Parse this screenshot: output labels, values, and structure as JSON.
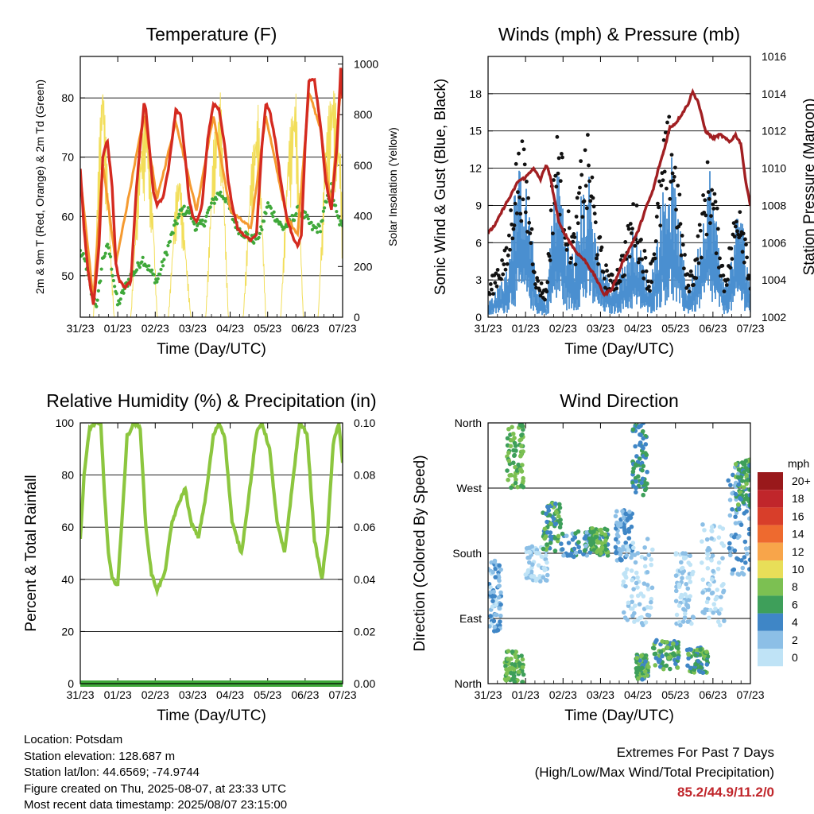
{
  "chart_data": [
    {
      "id": "temperature",
      "type": "line",
      "title": "Temperature (F)",
      "xlabel": "Time (Day/UTC)",
      "ylabel": "2m & 9m T (Red, Orange) & 2m Td (Green)",
      "ylabel_right": "Solar Insolation (Yellow)",
      "x_ticks": [
        "31/23",
        "01/23",
        "02/23",
        "03/23",
        "04/23",
        "05/23",
        "06/23",
        "07/23"
      ],
      "y_ticks": [
        50,
        60,
        70,
        80
      ],
      "ylim": [
        43,
        87
      ],
      "y_right_ticks": [
        0,
        200,
        400,
        600,
        800,
        1000
      ],
      "ylim_right": [
        0,
        1030
      ],
      "x_range_days": [
        0,
        7.0
      ],
      "colors": {
        "t2m": "#d42a20",
        "t9m": "#f59a30",
        "td": "#3fa83a",
        "solar": "#f2de5a"
      },
      "series": [
        {
          "name": "2m T",
          "x": [
            0,
            0.1,
            0.2,
            0.35,
            0.5,
            0.6,
            0.72,
            0.85,
            0.95,
            1.05,
            1.2,
            1.35,
            1.5,
            1.7,
            1.75,
            1.85,
            1.95,
            2.0,
            2.05,
            2.2,
            2.35,
            2.55,
            2.68,
            2.8,
            2.9,
            3.0,
            3.1,
            3.25,
            3.4,
            3.55,
            3.7,
            3.85,
            3.95,
            4.05,
            4.2,
            4.35,
            4.55,
            4.7,
            4.85,
            4.95,
            5.05,
            5.2,
            5.35,
            5.5,
            5.7,
            5.8,
            5.9,
            6.0,
            6.1,
            6.25,
            6.4,
            6.55,
            6.7,
            6.85,
            6.95,
            7.0
          ],
          "values": [
            68,
            58,
            51,
            45,
            55,
            70,
            73,
            65,
            52,
            49,
            48,
            49,
            65,
            79,
            78,
            71,
            64,
            63,
            62,
            63,
            68,
            78,
            77,
            70,
            63,
            60,
            59,
            62,
            73,
            79,
            78,
            72,
            66,
            62,
            58,
            57,
            56,
            57,
            72,
            79,
            78,
            73,
            66,
            60,
            56,
            55,
            57,
            72,
            83,
            83,
            76,
            66,
            61,
            72,
            85,
            80
          ]
        },
        {
          "name": "9m T",
          "x": [
            0,
            0.35,
            0.6,
            0.95,
            1.7,
            2.05,
            2.55,
            3.1,
            3.55,
            4.0,
            4.55,
            4.95,
            5.5,
            5.8,
            6.1,
            6.4,
            6.7,
            6.95,
            7.0
          ],
          "values": [
            67,
            46,
            69,
            52,
            77,
            63,
            76,
            61,
            77,
            61,
            58,
            77,
            60,
            57,
            81,
            75,
            62,
            82,
            82
          ]
        },
        {
          "name": "2m Td",
          "x": [
            0,
            0.15,
            0.3,
            0.45,
            0.6,
            0.75,
            0.9,
            1.0,
            1.2,
            1.35,
            1.5,
            1.65,
            1.85,
            2.05,
            2.2,
            2.35,
            2.5,
            2.7,
            2.9,
            3.1,
            3.3,
            3.5,
            3.7,
            3.9,
            4.05,
            4.2,
            4.4,
            4.6,
            4.8,
            5.0,
            5.2,
            5.4,
            5.6,
            5.8,
            6.0,
            6.2,
            6.4,
            6.55,
            6.7,
            6.85,
            7.0
          ],
          "values": [
            54,
            52,
            47,
            45,
            53,
            55,
            49,
            45,
            48,
            50,
            51,
            53,
            51,
            49,
            52,
            55,
            58,
            61,
            61,
            58,
            59,
            62,
            64,
            63,
            60,
            58,
            57,
            56,
            57,
            62,
            60,
            58,
            59,
            61,
            60,
            58,
            58,
            62,
            65,
            60,
            58
          ]
        },
        {
          "name": "Solar",
          "x": [
            0,
            0.35,
            0.5,
            0.6,
            0.75,
            0.9,
            1.35,
            1.55,
            1.75,
            1.95,
            2.05,
            2.35,
            2.55,
            2.65,
            2.8,
            2.95,
            3.35,
            3.55,
            3.75,
            3.95,
            4.35,
            4.55,
            4.75,
            4.95,
            5.35,
            5.55,
            5.75,
            5.95,
            6.35,
            6.55,
            6.75,
            6.95,
            7.0
          ],
          "values": [
            0,
            0,
            700,
            1000,
            500,
            0,
            0,
            600,
            850,
            400,
            0,
            0,
            500,
            600,
            300,
            0,
            0,
            700,
            900,
            0,
            0,
            600,
            850,
            0,
            0,
            700,
            920,
            0,
            0,
            750,
            950,
            650,
            300
          ]
        }
      ]
    },
    {
      "id": "winds",
      "type": "line",
      "title": "Winds (mph) & Pressure (mb)",
      "xlabel": "Time (Day/UTC)",
      "ylabel": "Sonic Wind & Gust (Blue, Black)",
      "ylabel_right": "Station Pressure (Maroon)",
      "x_ticks": [
        "31/23",
        "01/23",
        "02/23",
        "03/23",
        "04/23",
        "05/23",
        "06/23",
        "07/23"
      ],
      "y_ticks": [
        0,
        3,
        6,
        9,
        12,
        15,
        18
      ],
      "ylim": [
        0,
        21
      ],
      "y_right_ticks": [
        1002,
        1004,
        1006,
        1008,
        1010,
        1012,
        1014,
        1016
      ],
      "ylim_right": [
        1002,
        1016
      ],
      "x_range_days": [
        0,
        7.0
      ],
      "colors": {
        "wind": "#4a8fd0",
        "gust": "#111111",
        "pressure": "#a11f22"
      },
      "series": [
        {
          "name": "Wind",
          "x": [
            0,
            0.25,
            0.5,
            0.7,
            0.9,
            1.1,
            1.3,
            1.55,
            1.75,
            1.9,
            2.1,
            2.3,
            2.5,
            2.7,
            2.9,
            3.1,
            3.3,
            3.5,
            3.7,
            3.9,
            4.1,
            4.3,
            4.5,
            4.7,
            4.9,
            5.1,
            5.3,
            5.5,
            5.7,
            5.9,
            6.1,
            6.3,
            6.5,
            6.7,
            6.9,
            7.0
          ],
          "values": [
            1,
            2,
            3,
            8,
            10,
            7,
            2,
            1,
            8,
            10,
            5,
            4,
            8,
            9,
            5,
            3,
            2,
            3,
            4,
            6,
            4,
            2,
            5,
            9,
            10,
            6,
            2,
            3,
            6,
            10,
            6,
            2,
            4,
            8,
            4,
            2
          ]
        },
        {
          "name": "Gust",
          "x": [
            0,
            0.25,
            0.5,
            0.7,
            0.9,
            1.1,
            1.3,
            1.55,
            1.75,
            1.9,
            2.1,
            2.3,
            2.5,
            2.7,
            2.9,
            3.1,
            3.3,
            3.5,
            3.7,
            3.9,
            4.1,
            4.3,
            4.5,
            4.7,
            4.9,
            5.1,
            5.3,
            5.5,
            5.7,
            5.9,
            6.1,
            6.3,
            6.5,
            6.7,
            6.9,
            7.0
          ],
          "values": [
            2,
            4,
            5,
            11,
            13,
            9,
            3,
            2,
            12,
            14,
            8,
            6,
            12,
            13,
            7,
            4,
            3,
            4,
            6,
            9,
            6,
            3,
            8,
            13,
            15,
            9,
            3,
            4,
            8,
            12,
            8,
            3,
            6,
            10,
            6,
            3
          ]
        },
        {
          "name": "Pressure",
          "x": [
            0,
            0.2,
            0.45,
            0.6,
            0.8,
            1.0,
            1.2,
            1.4,
            1.55,
            1.65,
            1.9,
            2.1,
            2.35,
            2.6,
            2.85,
            3.1,
            3.3,
            3.45,
            3.6,
            3.8,
            4.0,
            4.2,
            4.4,
            4.55,
            4.7,
            4.85,
            5.0,
            5.2,
            5.35,
            5.45,
            5.6,
            5.8,
            6.0,
            6.2,
            6.45,
            6.6,
            6.75,
            6.85,
            7.0
          ],
          "values": [
            1006.5,
            1007,
            1008,
            1008.5,
            1009.3,
            1009.5,
            1010,
            1009.4,
            1010.2,
            1009.6,
            1007,
            1006.3,
            1005.5,
            1005,
            1004.2,
            1003.2,
            1003.5,
            1004.2,
            1005,
            1005.8,
            1006.6,
            1007.8,
            1008.8,
            1010,
            1011,
            1012.2,
            1012.4,
            1013,
            1013.5,
            1014.1,
            1013.6,
            1012,
            1011.6,
            1011.8,
            1011.4,
            1011.8,
            1011.3,
            1009.6,
            1008
          ]
        }
      ]
    },
    {
      "id": "humidity",
      "type": "line",
      "title": "Relative Humidity (%) & Precipitation (in)",
      "xlabel": "Time (Day/UTC)",
      "ylabel": "Percent & Total Rainfall",
      "x_ticks": [
        "31/23",
        "01/23",
        "02/23",
        "03/23",
        "04/23",
        "05/23",
        "06/23",
        "07/23"
      ],
      "y_ticks": [
        0,
        20,
        40,
        60,
        80,
        100
      ],
      "ylim": [
        0,
        100
      ],
      "y_right_ticks": [
        "0.00",
        "0.02",
        "0.04",
        "0.06",
        "0.08",
        "0.10"
      ],
      "ylim_right": [
        0,
        0.1
      ],
      "x_range_days": [
        0,
        7.0
      ],
      "colors": {
        "rh": "#8cc63f",
        "rain": "#3fa83a"
      },
      "series": [
        {
          "name": "RH",
          "x": [
            0,
            0.1,
            0.25,
            0.4,
            0.55,
            0.65,
            0.75,
            0.85,
            1.0,
            1.1,
            1.25,
            1.45,
            1.6,
            1.75,
            1.9,
            2.05,
            2.25,
            2.45,
            2.65,
            2.8,
            2.95,
            3.15,
            3.35,
            3.55,
            3.7,
            3.85,
            4.05,
            4.3,
            4.5,
            4.7,
            4.85,
            5.05,
            5.25,
            5.45,
            5.65,
            5.85,
            6.05,
            6.25,
            6.45,
            6.6,
            6.75,
            6.9,
            7.0
          ],
          "values": [
            55,
            80,
            98,
            100,
            99,
            72,
            50,
            40,
            38,
            60,
            95,
            100,
            98,
            60,
            42,
            36,
            42,
            62,
            70,
            75,
            62,
            56,
            72,
            95,
            100,
            95,
            62,
            50,
            72,
            96,
            100,
            90,
            62,
            50,
            75,
            100,
            96,
            55,
            40,
            58,
            92,
            100,
            85
          ]
        },
        {
          "name": "Rainfall",
          "x": [
            0,
            7.0
          ],
          "values": [
            0,
            0
          ]
        }
      ]
    },
    {
      "id": "direction",
      "type": "scatter",
      "title": "Wind Direction",
      "xlabel": "Time (Day/UTC)",
      "ylabel": "Direction (Colored By Speed)",
      "x_ticks": [
        "31/23",
        "01/23",
        "02/23",
        "03/23",
        "04/23",
        "05/23",
        "06/23",
        "07/23"
      ],
      "y_ticks": [
        "North",
        "East",
        "South",
        "West",
        "North"
      ],
      "ylim": [
        0,
        360
      ],
      "x_range_days": [
        0,
        7.0
      ],
      "legend": {
        "title": "mph",
        "labels": [
          "20+",
          "18",
          "16",
          "14",
          "12",
          "10",
          "8",
          "6",
          "4",
          "2",
          "0"
        ],
        "colors": [
          "#99191b",
          "#c0262b",
          "#d83e2a",
          "#ee6a2f",
          "#f8a54a",
          "#e8de58",
          "#7cc052",
          "#3e9f5a",
          "#3f86c6",
          "#8cbfe6",
          "#bfe3f6"
        ]
      },
      "clusters": [
        {
          "x": [
            0,
            0.35
          ],
          "dir": [
            70,
            170
          ],
          "speed": 2
        },
        {
          "x": [
            0.5,
            0.95
          ],
          "dir": [
            270,
            358
          ],
          "speed": 7
        },
        {
          "x": [
            0.45,
            0.95
          ],
          "dir": [
            2,
            45
          ],
          "speed": 7
        },
        {
          "x": [
            1.0,
            1.6
          ],
          "dir": [
            140,
            190
          ],
          "speed": 1
        },
        {
          "x": [
            1.45,
            1.95
          ],
          "dir": [
            180,
            250
          ],
          "speed": 6
        },
        {
          "x": [
            1.95,
            3.2
          ],
          "dir": [
            175,
            210
          ],
          "speed": 4
        },
        {
          "x": [
            2.7,
            3.2
          ],
          "dir": [
            180,
            215
          ],
          "speed": 7
        },
        {
          "x": [
            3.4,
            3.85
          ],
          "dir": [
            170,
            240
          ],
          "speed": 3
        },
        {
          "x": [
            3.85,
            4.25
          ],
          "dir": [
            260,
            360
          ],
          "speed": 5
        },
        {
          "x": [
            3.6,
            4.4
          ],
          "dir": [
            80,
            200
          ],
          "speed": 1
        },
        {
          "x": [
            3.95,
            4.3
          ],
          "dir": [
            5,
            40
          ],
          "speed": 6
        },
        {
          "x": [
            4.4,
            5.1
          ],
          "dir": [
            20,
            60
          ],
          "speed": 6
        },
        {
          "x": [
            5.0,
            5.5
          ],
          "dir": [
            80,
            180
          ],
          "speed": 1
        },
        {
          "x": [
            5.3,
            5.9
          ],
          "dir": [
            15,
            50
          ],
          "speed": 6
        },
        {
          "x": [
            5.7,
            6.3
          ],
          "dir": [
            80,
            220
          ],
          "speed": 1
        },
        {
          "x": [
            6.4,
            7.0
          ],
          "dir": [
            150,
            300
          ],
          "speed": 3
        },
        {
          "x": [
            6.6,
            7.0
          ],
          "dir": [
            240,
            310
          ],
          "speed": 6
        }
      ]
    }
  ],
  "footer": {
    "location": "Location: Potsdam",
    "elevation": "Station elevation: 128.687 m",
    "latlon": "Station lat/lon: 44.6569; -74.9744",
    "created": "Figure created on Thu, 2025-08-07, at 23:33 UTC",
    "recent": "Most recent data timestamp: 2025/08/07 23:15:00"
  },
  "extremes": {
    "line1": "Extremes For Past 7 Days",
    "line2": "(High/Low/Max Wind/Total Precipitation)",
    "values": "85.2/44.9/11.2/0"
  }
}
